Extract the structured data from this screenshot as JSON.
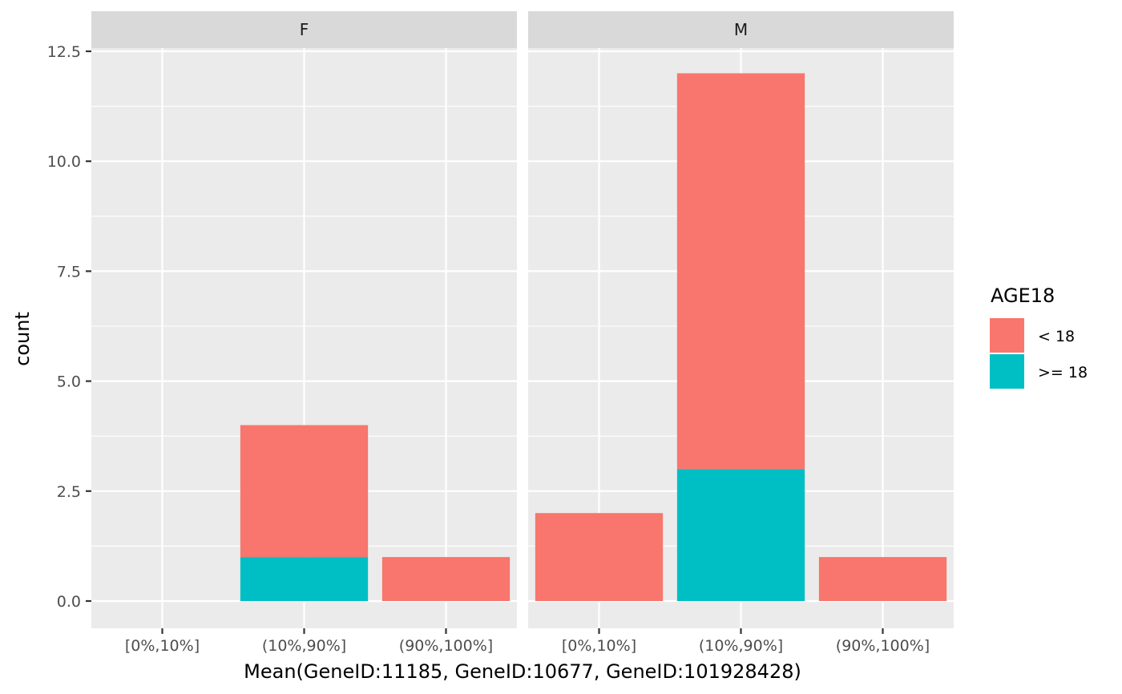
{
  "chart_data": {
    "type": "bar",
    "stacked": true,
    "facet_variable": "sex",
    "facets": [
      "F",
      "M"
    ],
    "categories": [
      "[0%,10%]",
      "(10%,90%]",
      "(90%,100%]"
    ],
    "xlabel": "Mean(GeneID:11185, GeneID:10677, GeneID:101928428)",
    "ylabel": "count",
    "ylim": [
      0,
      12.5
    ],
    "yticks": [
      0.0,
      2.5,
      5.0,
      7.5,
      10.0,
      12.5
    ],
    "ytick_labels": [
      "0.0",
      "2.5",
      "5.0",
      "7.5",
      "10.0",
      "12.5"
    ],
    "legend": {
      "title": "AGE18",
      "position": "right",
      "entries": [
        "< 18",
        ">= 18"
      ]
    },
    "series": [
      {
        "name": "< 18",
        "color": "#F8766D",
        "values": {
          "F": [
            0,
            3,
            1
          ],
          "M": [
            2,
            9,
            1
          ]
        }
      },
      {
        "name": ">= 18",
        "color": "#00BFC4",
        "values": {
          "F": [
            0,
            1,
            0
          ],
          "M": [
            0,
            3,
            0
          ]
        }
      }
    ],
    "grid": true,
    "colors": {
      "panel": "#EBEBEB",
      "strip": "#D9D9D9",
      "grid": "#FFFFFF"
    }
  }
}
